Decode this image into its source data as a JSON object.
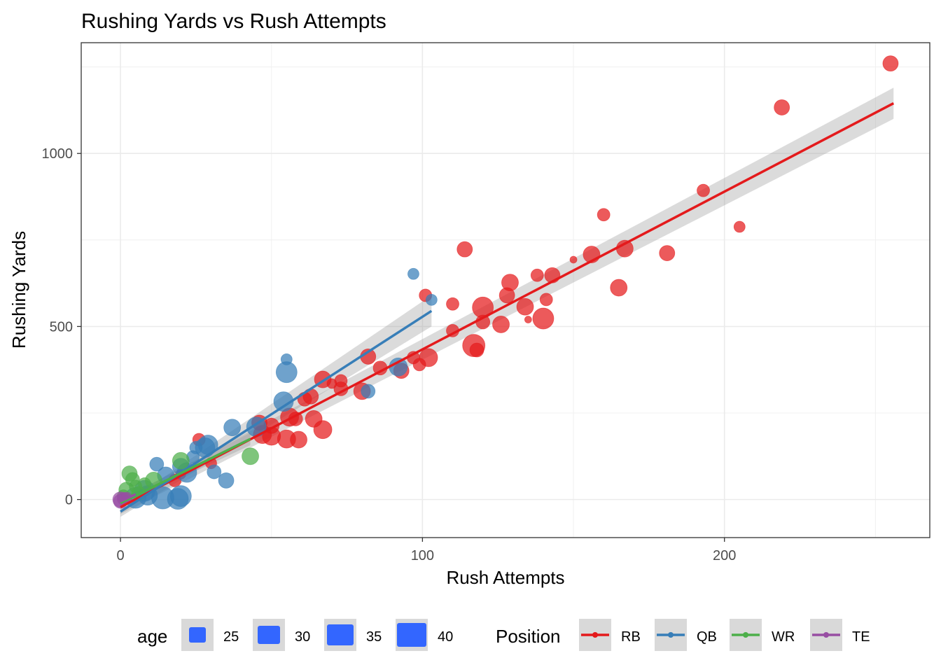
{
  "chart_data": {
    "type": "scatter",
    "title": "Rushing Yards vs Rush Attempts",
    "xlabel": "Rush Attempts",
    "ylabel": "Rushing Yards",
    "xlim": [
      -13,
      268
    ],
    "ylim": [
      -110,
      1320
    ],
    "x_ticks": [
      {
        "value": 0,
        "label": "0"
      },
      {
        "value": 100,
        "label": "100"
      },
      {
        "value": 200,
        "label": "200"
      }
    ],
    "y_ticks": [
      {
        "value": 0,
        "label": "0"
      },
      {
        "value": 500,
        "label": "500"
      },
      {
        "value": 1000,
        "label": "1000"
      }
    ],
    "x_minor": [
      50,
      150,
      250
    ],
    "y_minor": [
      250,
      750,
      1250
    ],
    "grid": true,
    "legend_position": "bottom",
    "size_legend": {
      "title": "age",
      "entries": [
        {
          "label": "25",
          "value": 25
        },
        {
          "label": "30",
          "value": 30
        },
        {
          "label": "35",
          "value": 35
        },
        {
          "label": "40",
          "value": 40
        }
      ],
      "color": "#3366ff"
    },
    "color_legend": {
      "title": "Position",
      "entries": [
        {
          "label": "RB",
          "color": "#e41a1c"
        },
        {
          "label": "QB",
          "color": "#377eb8"
        },
        {
          "label": "WR",
          "color": "#4daf4a"
        },
        {
          "label": "TE",
          "color": "#984ea3"
        }
      ]
    },
    "series": [
      {
        "position": "RB",
        "color": "#e41a1c",
        "points": [
          [
            255,
            1260,
            11
          ],
          [
            219,
            1133,
            11
          ],
          [
            193,
            893,
            9
          ],
          [
            205,
            788,
            8
          ],
          [
            160,
            823,
            9
          ],
          [
            167,
            725,
            12
          ],
          [
            181,
            712,
            11
          ],
          [
            165,
            612,
            12
          ],
          [
            156,
            708,
            12
          ],
          [
            150,
            693,
            5
          ],
          [
            143,
            648,
            11
          ],
          [
            138,
            648,
            9
          ],
          [
            141,
            578,
            9
          ],
          [
            140,
            523,
            15
          ],
          [
            134,
            557,
            12
          ],
          [
            135,
            520,
            5
          ],
          [
            129,
            627,
            12
          ],
          [
            128,
            590,
            11
          ],
          [
            126,
            506,
            12
          ],
          [
            120,
            555,
            15
          ],
          [
            120,
            513,
            10
          ],
          [
            117,
            445,
            16
          ],
          [
            118,
            432,
            10
          ],
          [
            114,
            723,
            11
          ],
          [
            110,
            565,
            9
          ],
          [
            110,
            488,
            9
          ],
          [
            101,
            590,
            9
          ],
          [
            102,
            410,
            13
          ],
          [
            99,
            390,
            9
          ],
          [
            97,
            410,
            9
          ],
          [
            93,
            372,
            11
          ],
          [
            86,
            380,
            10
          ],
          [
            82,
            413,
            11
          ],
          [
            80,
            313,
            12
          ],
          [
            73,
            343,
            9
          ],
          [
            73,
            320,
            10
          ],
          [
            70,
            335,
            7
          ],
          [
            67,
            347,
            12
          ],
          [
            67,
            202,
            13
          ],
          [
            64,
            233,
            12
          ],
          [
            63,
            298,
            11
          ],
          [
            61,
            290,
            10
          ],
          [
            59,
            173,
            12
          ],
          [
            58,
            233,
            10
          ],
          [
            56,
            238,
            13
          ],
          [
            55,
            175,
            13
          ],
          [
            50,
            213,
            11
          ],
          [
            50,
            183,
            13
          ],
          [
            47,
            188,
            13
          ],
          [
            46,
            222,
            11
          ],
          [
            26,
            173,
            9
          ],
          [
            30,
            105,
            8
          ],
          [
            20,
            73,
            7
          ],
          [
            18,
            55,
            9
          ]
        ]
      },
      {
        "position": "QB",
        "color": "#377eb8",
        "points": [
          [
            97,
            652,
            8
          ],
          [
            103,
            577,
            8
          ],
          [
            92,
            383,
            13
          ],
          [
            82,
            313,
            10
          ],
          [
            55,
            405,
            8
          ],
          [
            55,
            368,
            15
          ],
          [
            54,
            283,
            14
          ],
          [
            45,
            210,
            14
          ],
          [
            37,
            208,
            12
          ],
          [
            35,
            55,
            11
          ],
          [
            31,
            80,
            10
          ],
          [
            29,
            158,
            14
          ],
          [
            28,
            150,
            14
          ],
          [
            25,
            150,
            9
          ],
          [
            24,
            123,
            9
          ],
          [
            22,
            78,
            14
          ],
          [
            20,
            95,
            12
          ],
          [
            12,
            102,
            10
          ],
          [
            15,
            70,
            12
          ],
          [
            8,
            25,
            15
          ],
          [
            9,
            12,
            14
          ],
          [
            14,
            5,
            16
          ],
          [
            19,
            2,
            15
          ],
          [
            20,
            10,
            15
          ],
          [
            5,
            5,
            15
          ]
        ]
      },
      {
        "position": "WR",
        "color": "#4daf4a",
        "points": [
          [
            43,
            125,
            12
          ],
          [
            20,
            112,
            12
          ],
          [
            11,
            55,
            12
          ],
          [
            3,
            75,
            11
          ],
          [
            4,
            58,
            10
          ],
          [
            2,
            28,
            11
          ],
          [
            6,
            18,
            10
          ],
          [
            5,
            38,
            9
          ],
          [
            8,
            45,
            9
          ],
          [
            1,
            10,
            9
          ]
        ]
      },
      {
        "position": "TE",
        "color": "#984ea3",
        "points": [
          [
            0,
            0,
            11
          ],
          [
            1,
            2,
            9
          ],
          [
            0,
            -5,
            10
          ],
          [
            2,
            5,
            8
          ]
        ]
      }
    ],
    "trend_lines": [
      {
        "position": "RB",
        "color": "#e41a1c",
        "x": [
          0,
          256
        ],
        "y": [
          -22,
          1145
        ],
        "band_half_width": [
          20,
          45
        ]
      },
      {
        "position": "QB",
        "color": "#377eb8",
        "x": [
          0,
          103
        ],
        "y": [
          -35,
          545
        ],
        "band_half_width": [
          15,
          45
        ]
      },
      {
        "position": "WR",
        "color": "#4daf4a",
        "x": [
          0,
          43
        ],
        "y": [
          -10,
          175
        ],
        "band_half_width": [
          10,
          18
        ]
      },
      {
        "position": "TE",
        "color": "#984ea3",
        "x": [
          0,
          5
        ],
        "y": [
          -5,
          15
        ],
        "band_half_width": [
          5,
          8
        ]
      }
    ]
  }
}
